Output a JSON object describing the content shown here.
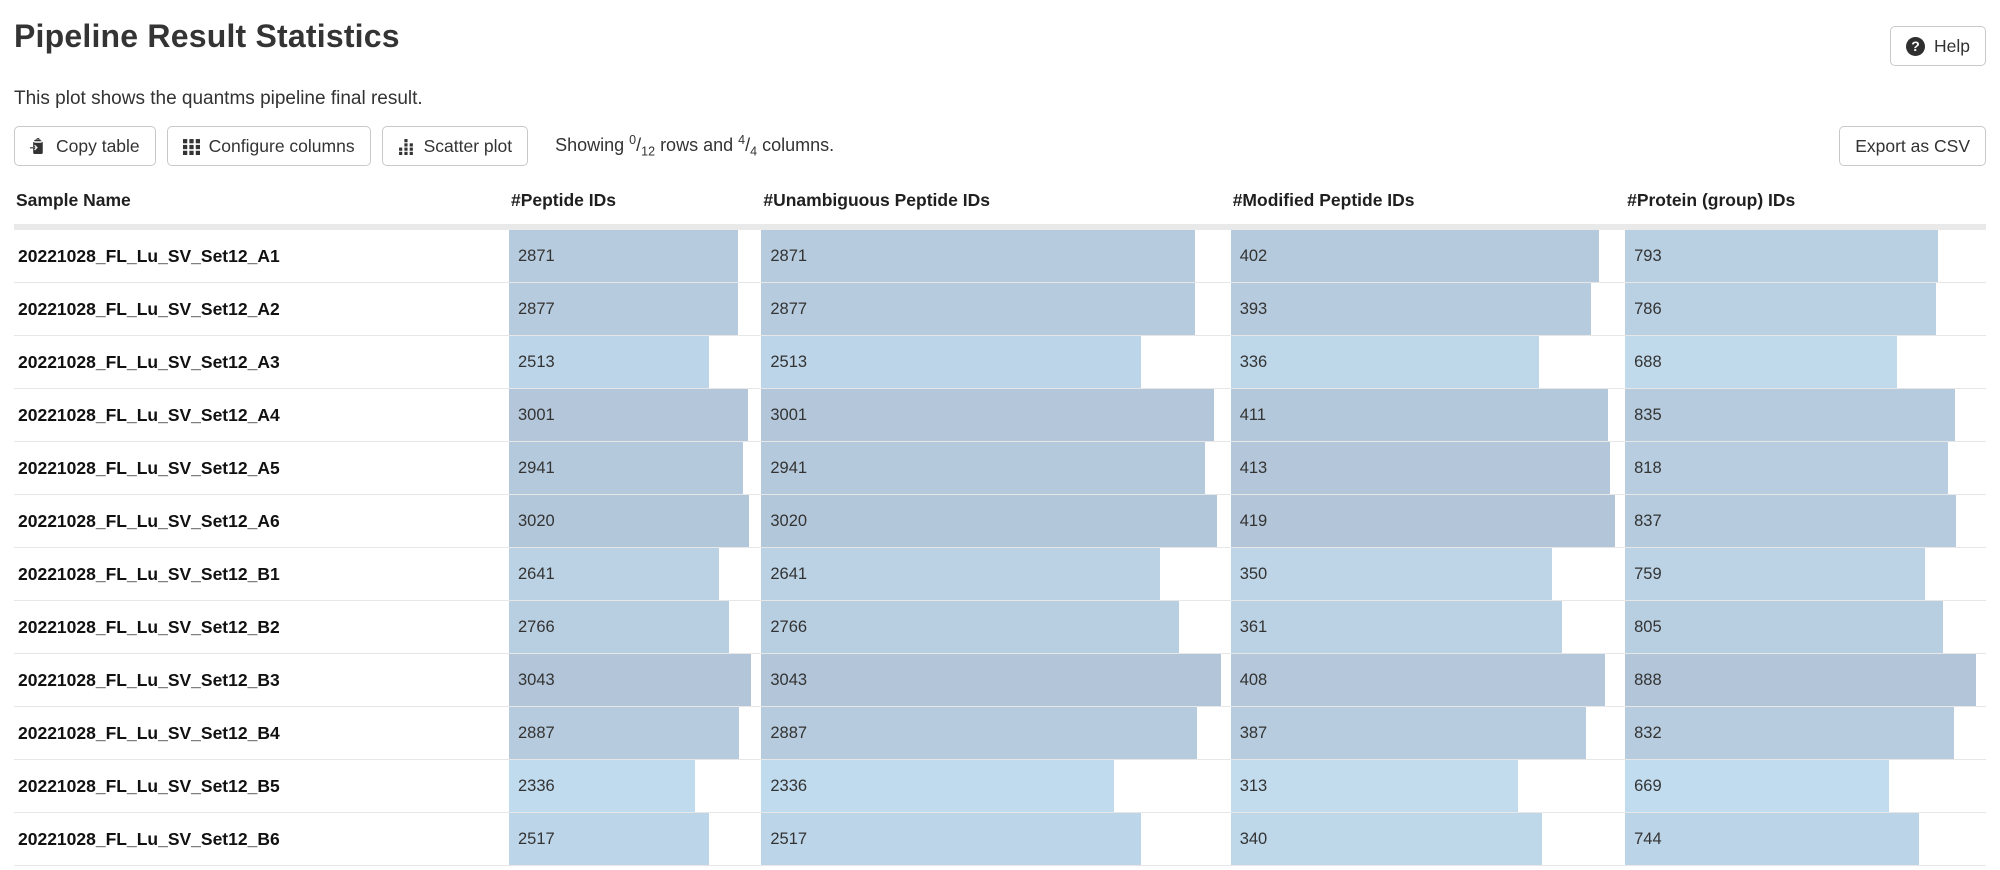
{
  "page": {
    "title": "Pipeline Result Statistics",
    "subtitle": "This plot shows the quantms pipeline final result.",
    "help_label": "Help",
    "help_icon_glyph": "?"
  },
  "toolbar": {
    "copy_label": "Copy table",
    "configure_label": "Configure columns",
    "scatter_label": "Scatter plot",
    "export_label": "Export as CSV",
    "showing": {
      "prefix": "Showing",
      "rows_shown": "0",
      "rows_total": "12",
      "middle": "rows and",
      "cols_shown": "4",
      "cols_total": "4",
      "suffix": "columns."
    }
  },
  "table": {
    "columns": [
      {
        "label": "Sample Name"
      },
      {
        "label": "#Peptide IDs"
      },
      {
        "label": "#Unambiguous Peptide IDs"
      },
      {
        "label": "#Modified Peptide IDs"
      },
      {
        "label": "#Protein (group) IDs"
      }
    ],
    "bar_colors": {
      "light": "#c2ddef",
      "dark": "#b3c6d9"
    },
    "rows": [
      {
        "sample": "20221028_FL_Lu_SV_Set12_A1",
        "values": [
          2871,
          2871,
          402,
          793
        ]
      },
      {
        "sample": "20221028_FL_Lu_SV_Set12_A2",
        "values": [
          2877,
          2877,
          393,
          786
        ]
      },
      {
        "sample": "20221028_FL_Lu_SV_Set12_A3",
        "values": [
          2513,
          2513,
          336,
          688
        ]
      },
      {
        "sample": "20221028_FL_Lu_SV_Set12_A4",
        "values": [
          3001,
          3001,
          411,
          835
        ]
      },
      {
        "sample": "20221028_FL_Lu_SV_Set12_A5",
        "values": [
          2941,
          2941,
          413,
          818
        ]
      },
      {
        "sample": "20221028_FL_Lu_SV_Set12_A6",
        "values": [
          3020,
          3020,
          419,
          837
        ]
      },
      {
        "sample": "20221028_FL_Lu_SV_Set12_B1",
        "values": [
          2641,
          2641,
          350,
          759
        ]
      },
      {
        "sample": "20221028_FL_Lu_SV_Set12_B2",
        "values": [
          2766,
          2766,
          361,
          805
        ]
      },
      {
        "sample": "20221028_FL_Lu_SV_Set12_B3",
        "values": [
          3043,
          3043,
          408,
          888
        ]
      },
      {
        "sample": "20221028_FL_Lu_SV_Set12_B4",
        "values": [
          2887,
          2887,
          387,
          832
        ]
      },
      {
        "sample": "20221028_FL_Lu_SV_Set12_B5",
        "values": [
          2336,
          2336,
          313,
          669
        ]
      },
      {
        "sample": "20221028_FL_Lu_SV_Set12_B6",
        "values": [
          2517,
          2517,
          340,
          744
        ]
      }
    ]
  }
}
